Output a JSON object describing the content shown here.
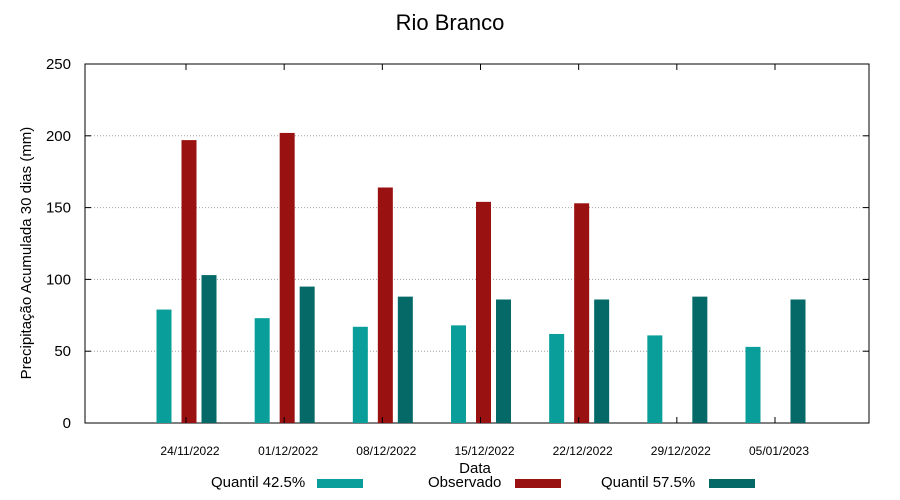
{
  "chart_data": {
    "type": "bar",
    "title": "Rio Branco",
    "xlabel": "Data",
    "ylabel": "Precipitação Acumulada 30 dias (mm)",
    "ylim": [
      0,
      250
    ],
    "yticks": [
      "0",
      "50",
      "100",
      "150",
      "200",
      "250"
    ],
    "grid": "horizontal dotted",
    "legend_position": "bottom",
    "categories": [
      "24/11/2022",
      "01/12/2022",
      "08/12/2022",
      "15/12/2022",
      "22/12/2022",
      "29/12/2022",
      "05/01/2023"
    ],
    "series": [
      {
        "name": "Quantil 42.5%",
        "color": "#0a9e9a",
        "values": [
          79,
          73,
          67,
          68,
          62,
          61,
          53
        ]
      },
      {
        "name": "Observado",
        "color": "#991111",
        "values": [
          197,
          202,
          164,
          154,
          153,
          null,
          null
        ]
      },
      {
        "name": "Quantil 57.5%",
        "color": "#056a67",
        "values": [
          103,
          95,
          88,
          86,
          86,
          88,
          86
        ]
      }
    ]
  }
}
